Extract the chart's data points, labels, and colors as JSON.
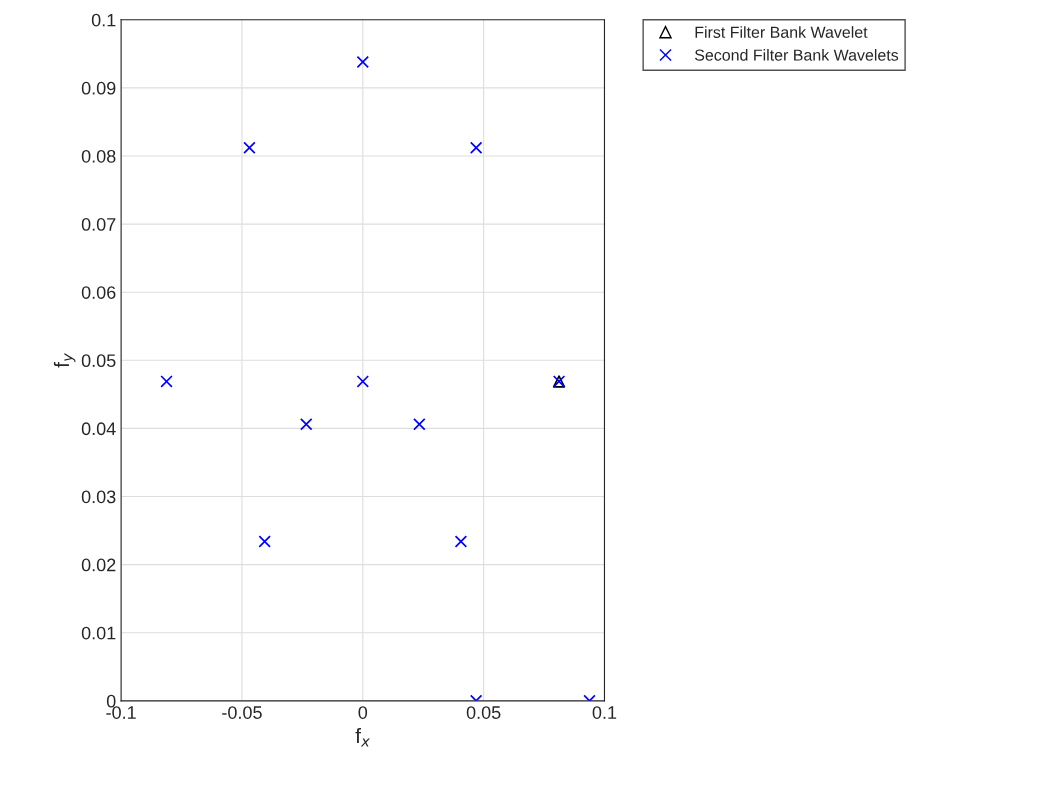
{
  "chart_data": {
    "type": "scatter",
    "xlabel": "f$_{x}$",
    "ylabel": "f$_{y}$",
    "xlim": [
      -0.1,
      0.1
    ],
    "ylim": [
      0,
      0.1
    ],
    "xticks": [
      -0.1,
      -0.05,
      0,
      0.05,
      0.1
    ],
    "yticks": [
      0,
      0.01,
      0.02,
      0.03,
      0.04,
      0.05,
      0.06,
      0.07,
      0.08,
      0.09,
      0.1
    ],
    "grid": true,
    "legend": "top right",
    "series": [
      {
        "name": "First Filter Bank Wavelet",
        "color": "#000000",
        "marker": "triangle",
        "x": [
          0.0812
        ],
        "values": [
          0.0469
        ]
      },
      {
        "name": "Second Filter Bank Wavelets",
        "color": "#0000ff",
        "marker": "cross",
        "x": [
          0.0938,
          0.0812,
          0.0469,
          0,
          -0.0469,
          -0.0812,
          0.0469,
          0.0406,
          0.0234,
          0,
          -0.0234,
          -0.0406
        ],
        "values": [
          0,
          0.0469,
          0.0812,
          0.0938,
          0.0812,
          0.0469,
          0,
          0.0234,
          0.0406,
          0.0469,
          0.0406,
          0.0234
        ]
      }
    ]
  }
}
